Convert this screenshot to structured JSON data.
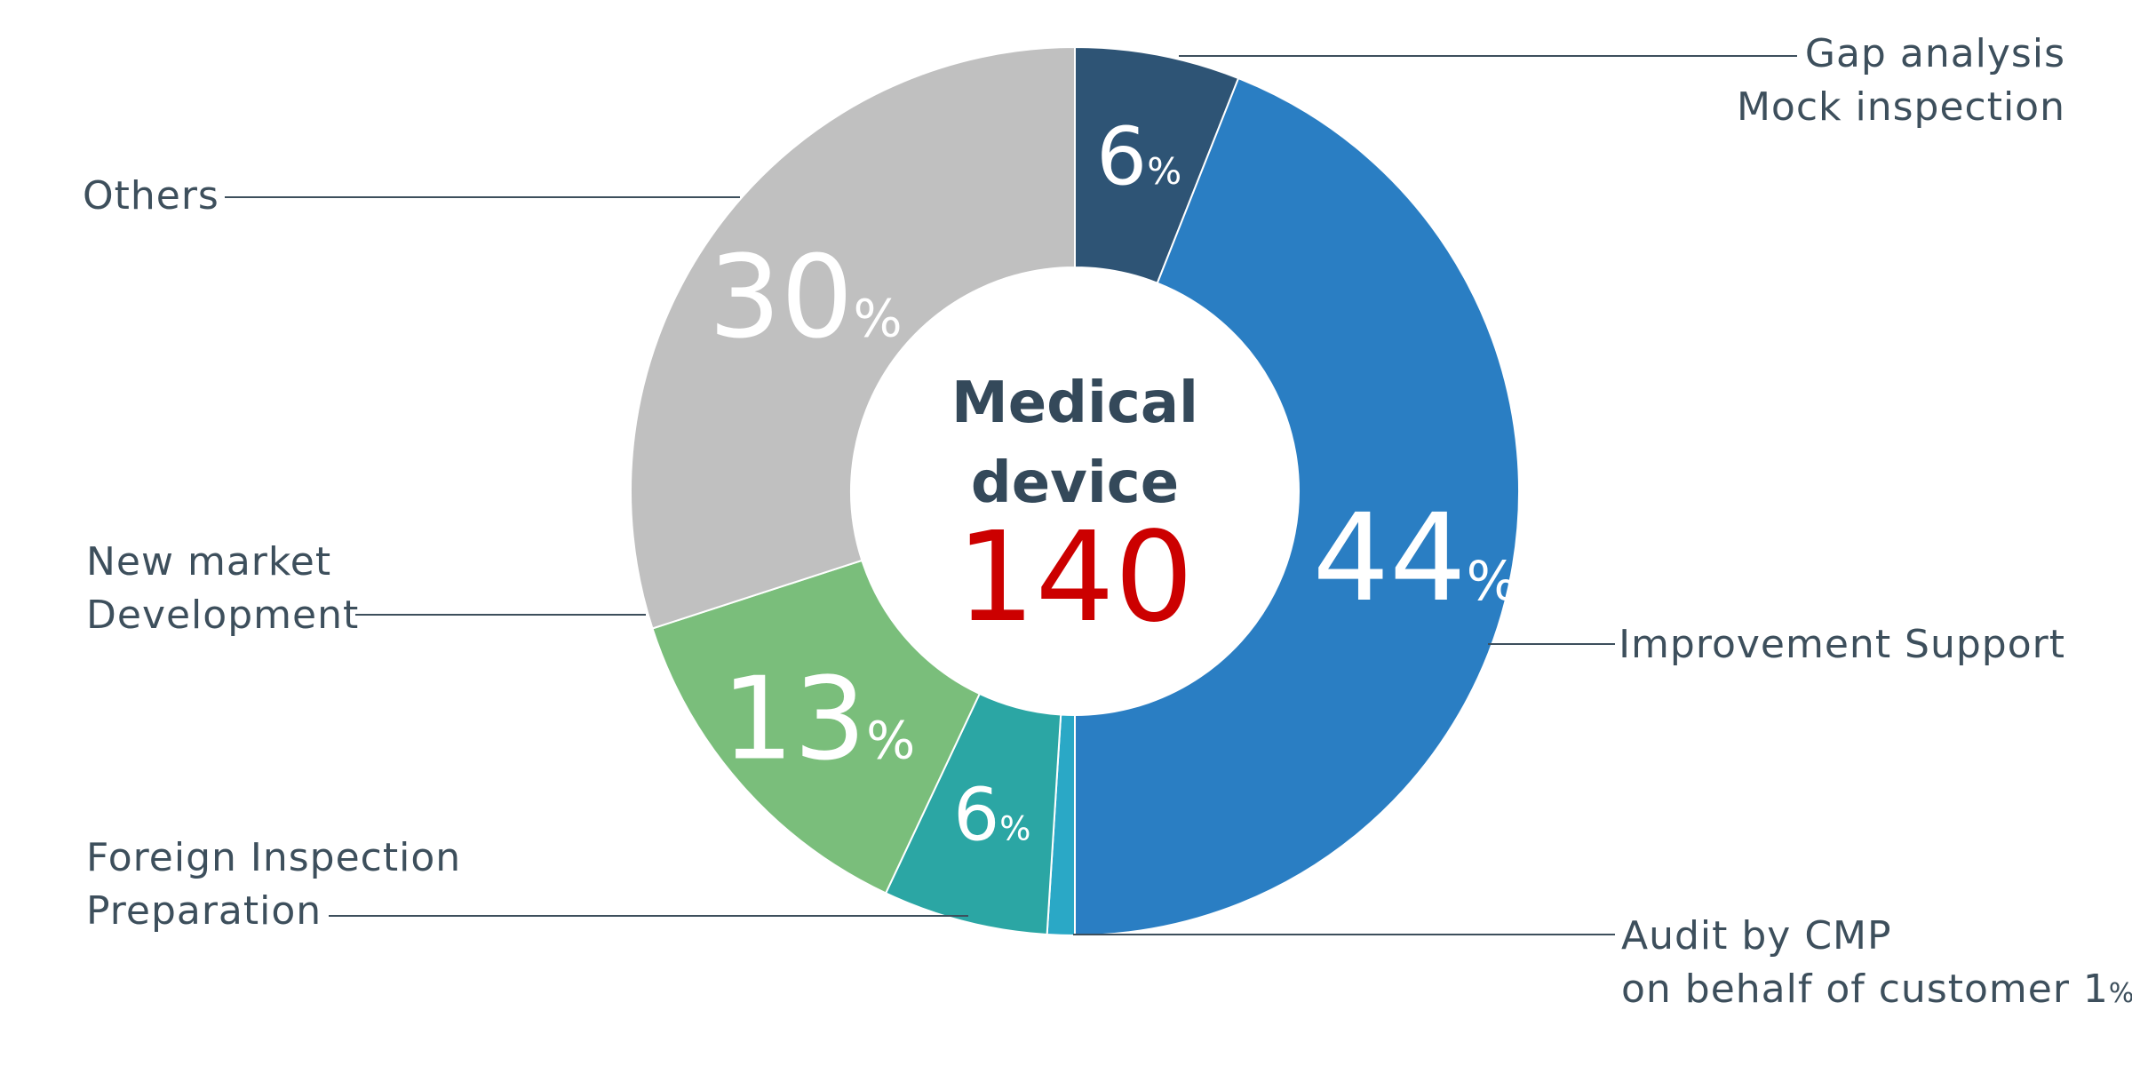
{
  "chart_data": {
    "type": "pie",
    "center": {
      "title_lines": [
        "Medical",
        "device"
      ],
      "total": "140",
      "total_color": "#cc0000"
    },
    "slices": [
      {
        "label": "Gap analysis Mock inspection",
        "label_lines": [
          "Gap  analysis",
          "Mock inspection"
        ],
        "value": 6,
        "color": "#2e5475",
        "pct_text": "6"
      },
      {
        "label": "Improvement Support",
        "label_lines": [
          "Improvement Support"
        ],
        "value": 44,
        "color": "#2a7ec3",
        "pct_text": "44"
      },
      {
        "label": "Audit by CMP on behalf of customer",
        "label_lines": [
          "Audit by CMP",
          "on behalf of customer 1"
        ],
        "value": 1,
        "color": "#2aa8c6",
        "pct_text": "",
        "label_pct_suffix": "%"
      },
      {
        "label": "Foreign Inspection Preparation",
        "label_lines": [
          "Foreign Inspection",
          "Preparation"
        ],
        "value": 6,
        "color": "#2ba6a4",
        "pct_text": "6"
      },
      {
        "label": "New market Development",
        "label_lines": [
          "New market",
          "Development"
        ],
        "value": 13,
        "color": "#7abe7b",
        "pct_text": "13"
      },
      {
        "label": "Others",
        "label_lines": [
          "Others"
        ],
        "value": 30,
        "color": "#c0c0c0",
        "pct_text": "30"
      }
    ],
    "percent_symbol": "%"
  }
}
